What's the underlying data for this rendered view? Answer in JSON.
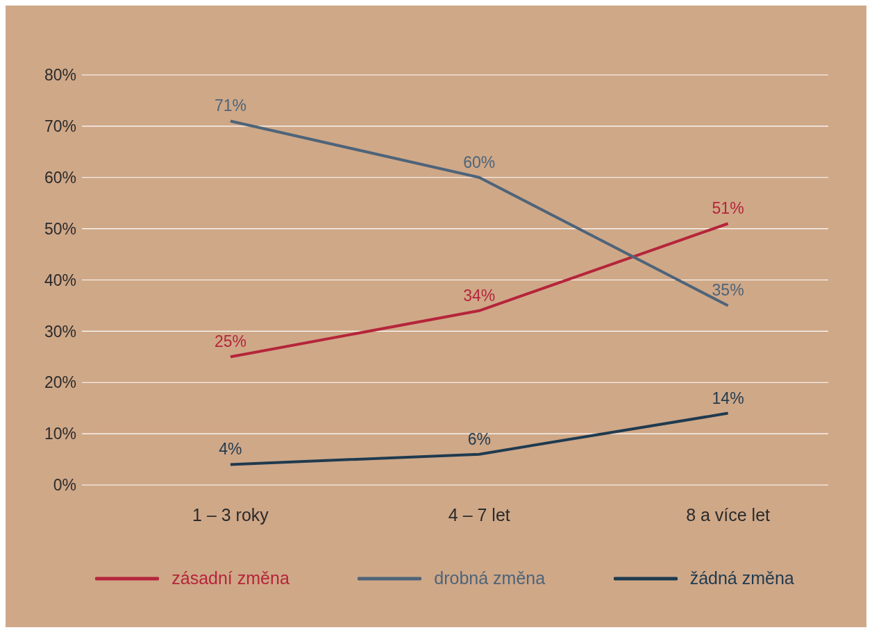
{
  "chart_data": {
    "type": "line",
    "categories": [
      "1 – 3 roky",
      "4 – 7 let",
      "8 a více let"
    ],
    "series": [
      {
        "name": "zásadní změna",
        "color": "#b5253a",
        "values": [
          25,
          34,
          51
        ],
        "value_labels": [
          "25%",
          "34%",
          "51%"
        ]
      },
      {
        "name": "drobná změna",
        "color": "#4e6479",
        "values": [
          71,
          60,
          35
        ],
        "value_labels": [
          "71%",
          "60%",
          "35%"
        ]
      },
      {
        "name": "žádná změna",
        "color": "#1f3a4f",
        "values": [
          4,
          6,
          14
        ],
        "value_labels": [
          "4%",
          "6%",
          "14%"
        ]
      }
    ],
    "ylim": [
      0,
      80
    ],
    "yticks": [
      {
        "value": 0,
        "label": "0%"
      },
      {
        "value": 10,
        "label": "10%"
      },
      {
        "value": 20,
        "label": "20%"
      },
      {
        "value": 30,
        "label": "30%"
      },
      {
        "value": 40,
        "label": "40%"
      },
      {
        "value": 50,
        "label": "50%"
      },
      {
        "value": 60,
        "label": "60%"
      },
      {
        "value": 70,
        "label": "70%"
      },
      {
        "value": 80,
        "label": "80%"
      }
    ],
    "grid": "y",
    "legend": "bottom",
    "marker": "none",
    "line_style": "solid"
  }
}
